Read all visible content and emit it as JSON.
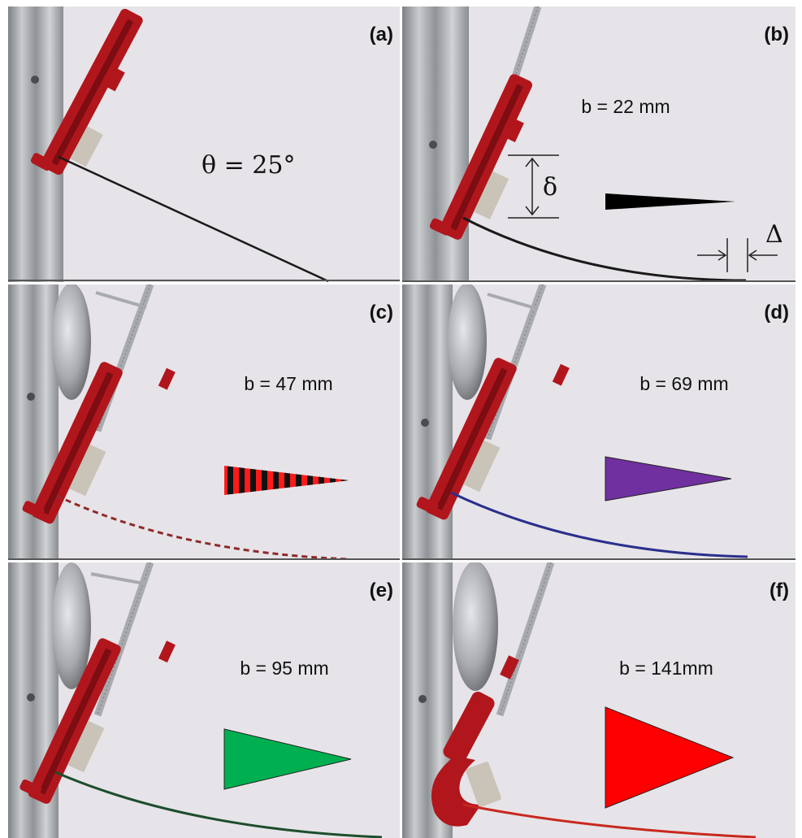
{
  "figure": {
    "panels": [
      {
        "id": "a",
        "letter": "(a)",
        "label": "",
        "theta_label": "θ = 25°",
        "beam_color": "#1a1a1a"
      },
      {
        "id": "b",
        "letter": "(b)",
        "label": "b = 22 mm",
        "beam_color": "#1a1a1a",
        "shape_color": "#000000",
        "delta_label": "δ",
        "Delta_label": "Δ"
      },
      {
        "id": "c",
        "letter": "(c)",
        "label": "b = 47 mm",
        "beam_color": "#8e2a2a",
        "shape_color": "#ff1a1a",
        "stripes": true
      },
      {
        "id": "d",
        "letter": "(d)",
        "label": "b = 69 mm",
        "beam_color": "#2b2f8c",
        "shape_color": "#7030a0"
      },
      {
        "id": "e",
        "letter": "(e)",
        "label": "b = 95 mm",
        "beam_color": "#1d4d2c",
        "shape_color": "#00b050"
      },
      {
        "id": "f",
        "letter": "(f)",
        "label": "b = 141mm",
        "beam_color": "#c8281e",
        "shape_color": "#ff0000"
      }
    ]
  }
}
